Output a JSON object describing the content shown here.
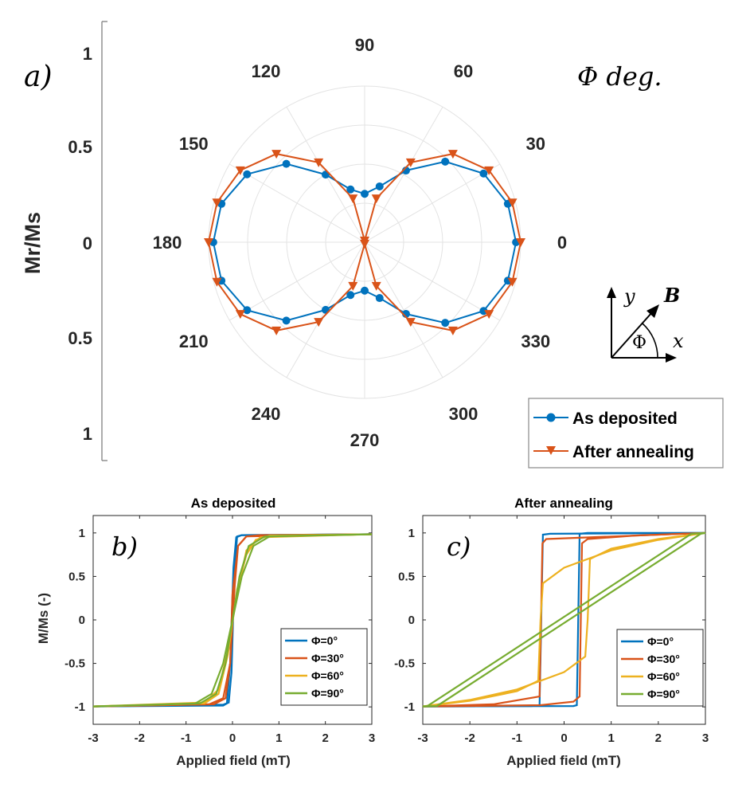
{
  "chart_data": [
    {
      "type": "polar",
      "panel_label": "a)",
      "angle_unit_label": "Φ deg.",
      "radial_label": "Mr/Ms",
      "radial_ticks": [
        "1",
        "0.5",
        "0",
        "0.5",
        "1"
      ],
      "angle_ticks": [
        "0",
        "30",
        "60",
        "90",
        "120",
        "150",
        "180",
        "210",
        "240",
        "270",
        "300",
        "330"
      ],
      "rlim": [
        0,
        1
      ],
      "grid": true,
      "legend_position": "bottom-right",
      "inset": {
        "y": "y",
        "x": "x",
        "b": "B",
        "phi": "Φ"
      },
      "theta_deg": [
        0,
        15,
        30,
        45,
        60,
        75,
        90,
        105,
        120,
        135,
        150,
        165,
        180,
        195,
        210,
        225,
        240,
        255,
        270,
        285,
        300,
        315,
        330,
        345
      ],
      "series": [
        {
          "name": "As deposited",
          "color": "#0072BD",
          "marker": "circle",
          "r": [
            0.97,
            0.95,
            0.88,
            0.73,
            0.53,
            0.37,
            0.31,
            0.35,
            0.5,
            0.71,
            0.87,
            0.95,
            0.97,
            0.95,
            0.87,
            0.71,
            0.5,
            0.35,
            0.31,
            0.37,
            0.53,
            0.73,
            0.88,
            0.95
          ]
        },
        {
          "name": "After annealing",
          "color": "#D95319",
          "marker": "triangle-down",
          "r": [
            1.0,
            0.98,
            0.92,
            0.8,
            0.59,
            0.29,
            0.01,
            0.29,
            0.59,
            0.8,
            0.92,
            0.98,
            1.0,
            0.98,
            0.92,
            0.8,
            0.59,
            0.29,
            0.01,
            0.29,
            0.59,
            0.8,
            0.92,
            0.98
          ]
        }
      ]
    },
    {
      "type": "line",
      "title": "As deposited",
      "panel_label": "b)",
      "xlabel": "Applied field (mT)",
      "ylabel": "M/Ms (-)",
      "xlim": [
        -3,
        3
      ],
      "ylim": [
        -1.2,
        1.2
      ],
      "xticks": [
        "-3",
        "-2",
        "-1",
        "0",
        "1",
        "2",
        "3"
      ],
      "yticks": [
        "-1",
        "-0.5",
        "0",
        "0.5",
        "1"
      ],
      "legend_position": "lower-right",
      "series": [
        {
          "name": "Φ=0°",
          "color": "#0072BD",
          "x_up": [
            -3,
            -0.2,
            -0.12,
            -0.05,
            0.02,
            0.08,
            0.2,
            3
          ],
          "y_up": [
            -0.995,
            -0.985,
            -0.96,
            -0.5,
            0.6,
            0.95,
            0.975,
            0.985
          ],
          "x_down": [
            3,
            0.2,
            0.1,
            0.04,
            -0.02,
            -0.08,
            -0.2,
            -3
          ],
          "y_down": [
            0.985,
            0.975,
            0.96,
            0.5,
            -0.6,
            -0.95,
            -0.975,
            -0.995
          ]
        },
        {
          "name": "Φ=30°",
          "color": "#D95319",
          "x_up": [
            -3,
            -0.5,
            -0.2,
            -0.05,
            0.05,
            0.12,
            0.3,
            0.6,
            3
          ],
          "y_up": [
            -0.995,
            -0.97,
            -0.9,
            -0.5,
            0.4,
            0.85,
            0.96,
            0.975,
            0.985
          ],
          "x_down": [
            3,
            0.3,
            0.12,
            0.0,
            -0.05,
            -0.15,
            -0.4,
            -3
          ],
          "y_down": [
            0.985,
            0.96,
            0.85,
            0.3,
            -0.5,
            -0.9,
            -0.97,
            -0.995
          ]
        },
        {
          "name": "Φ=60°",
          "color": "#EDB120",
          "x_up": [
            -3,
            -0.6,
            -0.3,
            -0.1,
            0.1,
            0.3,
            0.5,
            0.8,
            3
          ],
          "y_up": [
            -0.995,
            -0.96,
            -0.85,
            -0.4,
            0.35,
            0.75,
            0.92,
            0.97,
            0.985
          ],
          "x_down": [
            3,
            0.6,
            0.3,
            0.1,
            -0.1,
            -0.3,
            -0.6,
            -3
          ],
          "y_down": [
            0.985,
            0.95,
            0.8,
            0.3,
            -0.35,
            -0.8,
            -0.95,
            -0.995
          ]
        },
        {
          "name": "Φ=90°",
          "color": "#77AC30",
          "x_up": [
            -3,
            -0.7,
            -0.35,
            -0.15,
            0.0,
            0.2,
            0.45,
            0.8,
            3
          ],
          "y_up": [
            -0.995,
            -0.96,
            -0.85,
            -0.5,
            0.0,
            0.5,
            0.85,
            0.96,
            0.985
          ],
          "x_down": [
            3,
            0.7,
            0.35,
            0.15,
            0.0,
            -0.2,
            -0.45,
            -0.8,
            -3
          ],
          "y_down": [
            0.985,
            0.96,
            0.85,
            0.5,
            0.0,
            -0.5,
            -0.85,
            -0.96,
            -0.995
          ]
        }
      ]
    },
    {
      "type": "line",
      "title": "After annealing",
      "panel_label": "c)",
      "xlabel": "Applied field (mT)",
      "ylabel": "",
      "xlim": [
        -3,
        3
      ],
      "ylim": [
        -1.2,
        1.2
      ],
      "xticks": [
        "-3",
        "-2",
        "-1",
        "0",
        "1",
        "2",
        "3"
      ],
      "yticks": [
        "-1",
        "-0.5",
        "0",
        "0.5",
        "1"
      ],
      "legend_position": "lower-right",
      "series": [
        {
          "name": "Φ=0°",
          "color": "#0072BD",
          "x_up": [
            -3,
            0.2,
            0.27,
            0.33,
            0.5,
            3
          ],
          "y_up": [
            -0.995,
            -0.99,
            -0.98,
            0.99,
            1.0,
            1.0
          ],
          "x_down": [
            3,
            -0.3,
            -0.45,
            -0.52,
            -0.7,
            -3
          ],
          "y_down": [
            1.0,
            0.99,
            0.98,
            -0.98,
            -0.99,
            -0.995
          ]
        },
        {
          "name": "Φ=30°",
          "color": "#D95319",
          "x_up": [
            -3,
            -0.5,
            0.2,
            0.33,
            0.38,
            0.5,
            1.5,
            3
          ],
          "y_up": [
            -0.995,
            -0.98,
            -0.94,
            -0.88,
            0.88,
            0.93,
            0.97,
            1.0
          ],
          "x_down": [
            3,
            -0.38,
            -0.46,
            -0.52,
            -1.5,
            -3
          ],
          "y_down": [
            1.0,
            0.93,
            0.88,
            -0.88,
            -0.97,
            -0.995
          ]
        },
        {
          "name": "Φ=60°",
          "color": "#EDB120",
          "x_up": [
            -3,
            -2,
            -1,
            0,
            0.45,
            0.5,
            0.55,
            1,
            2,
            3
          ],
          "y_up": [
            -0.995,
            -0.92,
            -0.8,
            -0.6,
            -0.42,
            0.0,
            0.7,
            0.82,
            0.93,
            1.0
          ],
          "x_down": [
            3,
            2,
            1,
            0,
            -0.45,
            -0.5,
            -0.55,
            -1,
            -2,
            -3
          ],
          "y_down": [
            1.0,
            0.92,
            0.8,
            0.6,
            0.42,
            0.0,
            -0.7,
            -0.82,
            -0.93,
            -0.995
          ]
        },
        {
          "name": "Φ=90°",
          "color": "#77AC30",
          "x_up": [
            -3,
            -2.7,
            2.9,
            3
          ],
          "y_up": [
            -0.995,
            -0.99,
            0.99,
            1.0
          ],
          "x_down": [
            3,
            2.7,
            -2.9,
            -3
          ],
          "y_down": [
            1.0,
            0.99,
            -0.99,
            -0.995
          ]
        }
      ]
    }
  ]
}
